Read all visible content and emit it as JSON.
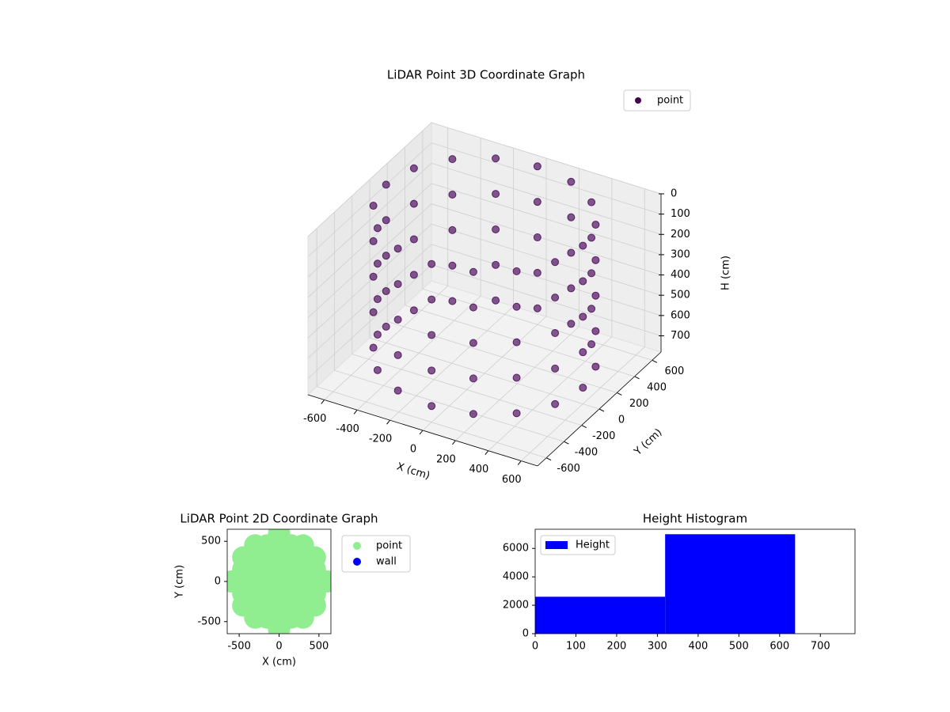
{
  "chart_data": [
    {
      "type": "scatter3d",
      "title": "LiDAR Point 3D Coordinate Graph",
      "xlabel": "X (cm)",
      "ylabel": "Y (cm)",
      "zlabel": "H (cm)",
      "xlim": [
        -700,
        700
      ],
      "ylim": [
        -700,
        700
      ],
      "zlim": [
        0,
        780
      ],
      "z_inverted": true,
      "xticks": [
        -600,
        -400,
        -200,
        0,
        200,
        400,
        600
      ],
      "yticks": [
        -600,
        -400,
        -200,
        0,
        200,
        400,
        600
      ],
      "zticks": [
        0,
        100,
        200,
        300,
        400,
        500,
        600,
        700
      ],
      "grid": true,
      "legend": "upper right",
      "series": [
        {
          "name": "point",
          "color": "#440154",
          "x": [
            600,
            554,
            424,
            230,
            0,
            -230,
            -424,
            -554,
            -600,
            -554,
            -424,
            -230,
            0,
            230,
            424,
            554,
            600,
            554,
            424,
            230,
            0,
            -230,
            -424,
            -554,
            -600,
            -554,
            -424,
            -230,
            0,
            230,
            424,
            554,
            600,
            554,
            424,
            230,
            0,
            -230,
            -424,
            -554,
            -600,
            -554,
            -424,
            -230,
            0,
            230,
            424,
            554,
            600,
            554,
            424,
            230,
            0,
            -230,
            -424,
            -554,
            -600,
            -554,
            -424,
            -230,
            0,
            230,
            424,
            554,
            600,
            554,
            424,
            230,
            0,
            -230,
            -424,
            -554,
            -600,
            -554,
            -424,
            -230,
            0,
            230,
            424,
            554
          ],
          "y": [
            0,
            230,
            424,
            554,
            600,
            554,
            424,
            230,
            0,
            -230,
            -424,
            -554,
            -600,
            -554,
            -424,
            -230,
            0,
            230,
            424,
            554,
            600,
            554,
            424,
            230,
            0,
            -230,
            -424,
            -554,
            -600,
            -554,
            -424,
            -230,
            0,
            230,
            424,
            554,
            600,
            554,
            424,
            230,
            0,
            -230,
            -424,
            -554,
            -600,
            -554,
            -424,
            -230,
            0,
            230,
            424,
            554,
            600,
            554,
            424,
            230,
            0,
            -230,
            -424,
            -554,
            -600,
            -554,
            -424,
            -230,
            0,
            230,
            424,
            554,
            600,
            554,
            424,
            230,
            0,
            -230,
            -424,
            -554,
            -600,
            -554,
            -424,
            -230
          ],
          "z": [
            0,
            0,
            0,
            0,
            0,
            0,
            0,
            0,
            0,
            0,
            0,
            0,
            0,
            0,
            0,
            0,
            175,
            175,
            175,
            175,
            175,
            175,
            175,
            175,
            175,
            175,
            175,
            175,
            175,
            175,
            175,
            175,
            350,
            350,
            350,
            350,
            350,
            350,
            350,
            350,
            350,
            350,
            350,
            350,
            350,
            350,
            350,
            350,
            525,
            525,
            525,
            525,
            525,
            525,
            525,
            525,
            525,
            525,
            525,
            525,
            525,
            525,
            525,
            525,
            700,
            700,
            700,
            700,
            700,
            700,
            700,
            700,
            700,
            700,
            700,
            700,
            700,
            700,
            700,
            700
          ]
        }
      ]
    },
    {
      "type": "scatter",
      "title": "LiDAR Point 2D Coordinate Graph",
      "xlabel": "X (cm)",
      "ylabel": "Y (cm)",
      "xlim": [
        -650,
        650
      ],
      "ylim": [
        -650,
        650
      ],
      "xticks": [
        -500,
        0,
        500
      ],
      "yticks": [
        -500,
        0,
        500
      ],
      "legend": "outside right",
      "series": [
        {
          "name": "point",
          "color": "#90ee90",
          "x": [
            -600,
            -450,
            -450,
            -450,
            -450,
            -450,
            -300,
            -300,
            -300,
            -300,
            -300,
            -300,
            -300,
            -150,
            -150,
            -150,
            -150,
            -150,
            -150,
            -150,
            0,
            0,
            0,
            0,
            0,
            0,
            0,
            0,
            0,
            150,
            150,
            150,
            150,
            150,
            150,
            150,
            300,
            300,
            300,
            300,
            300,
            300,
            300,
            450,
            450,
            450,
            450,
            450,
            600
          ],
          "y": [
            0,
            -300,
            -150,
            0,
            150,
            300,
            -450,
            -300,
            -150,
            0,
            150,
            300,
            450,
            -450,
            -300,
            -150,
            0,
            150,
            300,
            450,
            -600,
            -450,
            -300,
            -150,
            0,
            150,
            300,
            450,
            600,
            -450,
            -300,
            -150,
            0,
            150,
            300,
            450,
            -450,
            -300,
            -150,
            0,
            150,
            300,
            450,
            -300,
            -150,
            0,
            150,
            300,
            0
          ]
        },
        {
          "name": "wall",
          "color": "#0000ff",
          "x": [],
          "y": []
        }
      ]
    },
    {
      "type": "histogram",
      "title": "Height Histogram",
      "bins": [
        0,
        319,
        638
      ],
      "counts": [
        2600,
        7000
      ],
      "xlim": [
        0,
        785
      ],
      "ylim": [
        0,
        7350
      ],
      "xticks": [
        0,
        100,
        200,
        300,
        400,
        500,
        600,
        700
      ],
      "yticks": [
        0,
        2000,
        4000,
        6000
      ],
      "legend": "upper left",
      "series_name": "Height",
      "color": "#0000ff"
    }
  ]
}
